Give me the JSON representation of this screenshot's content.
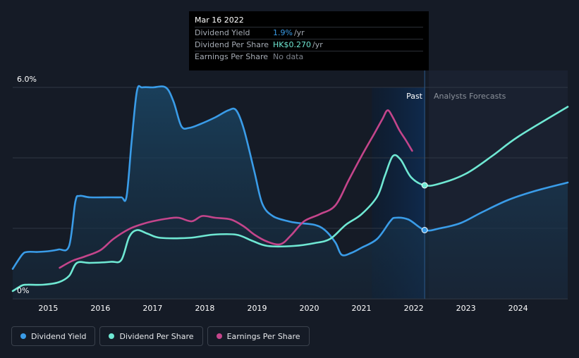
{
  "tooltip": {
    "date": "Mar 16 2022",
    "rows": [
      {
        "label": "Dividend Yield",
        "value": "1.9%",
        "unit": "/yr",
        "color": "#3a9ce8"
      },
      {
        "label": "Dividend Per Share",
        "value": "HK$0.270",
        "unit": "/yr",
        "color": "#6fe8d3"
      },
      {
        "label": "Earnings Per Share",
        "value": "No data",
        "unit": "",
        "color": "#7d838c"
      }
    ]
  },
  "legend": [
    {
      "label": "Dividend Yield",
      "color": "#3a9ce8"
    },
    {
      "label": "Dividend Per Share",
      "color": "#6fe8d3"
    },
    {
      "label": "Earnings Per Share",
      "color": "#c4458b"
    }
  ],
  "chart_data": {
    "type": "line",
    "ylim": [
      0,
      6
    ],
    "y_ticks": [
      "6.0%",
      "0%"
    ],
    "x_ticks": [
      "2015",
      "2016",
      "2017",
      "2018",
      "2019",
      "2020",
      "2021",
      "2022",
      "2023",
      "2024"
    ],
    "xlim": [
      2014.32,
      2024.95
    ],
    "past_label": "Past",
    "forecast_label": "Analysts Forecasts",
    "forecast_start": 2022.21,
    "shade_start": 2021.2,
    "grid": true,
    "legend_position": "bottom-left",
    "series": [
      {
        "name": "Dividend Yield",
        "color": "#3a9ce8",
        "area": true,
        "points": [
          [
            2014.32,
            0.85
          ],
          [
            2014.5,
            1.25
          ],
          [
            2014.6,
            1.33
          ],
          [
            2014.8,
            1.33
          ],
          [
            2015.0,
            1.35
          ],
          [
            2015.2,
            1.4
          ],
          [
            2015.4,
            1.5
          ],
          [
            2015.52,
            2.75
          ],
          [
            2015.6,
            2.92
          ],
          [
            2015.8,
            2.88
          ],
          [
            2016.2,
            2.88
          ],
          [
            2016.4,
            2.88
          ],
          [
            2016.5,
            2.9
          ],
          [
            2016.6,
            4.5
          ],
          [
            2016.7,
            5.9
          ],
          [
            2016.8,
            6.0
          ],
          [
            2017.0,
            6.0
          ],
          [
            2017.25,
            6.0
          ],
          [
            2017.4,
            5.6
          ],
          [
            2017.55,
            4.9
          ],
          [
            2017.7,
            4.85
          ],
          [
            2017.9,
            4.95
          ],
          [
            2018.2,
            5.15
          ],
          [
            2018.45,
            5.35
          ],
          [
            2018.6,
            5.35
          ],
          [
            2018.75,
            4.8
          ],
          [
            2018.95,
            3.6
          ],
          [
            2019.1,
            2.7
          ],
          [
            2019.3,
            2.35
          ],
          [
            2019.6,
            2.2
          ],
          [
            2019.8,
            2.15
          ],
          [
            2020.1,
            2.1
          ],
          [
            2020.3,
            1.95
          ],
          [
            2020.5,
            1.6
          ],
          [
            2020.62,
            1.25
          ],
          [
            2020.8,
            1.3
          ],
          [
            2021.0,
            1.45
          ],
          [
            2021.3,
            1.7
          ],
          [
            2021.55,
            2.2
          ],
          [
            2021.65,
            2.3
          ],
          [
            2021.9,
            2.25
          ],
          [
            2022.21,
            1.95
          ],
          [
            2022.5,
            2.0
          ],
          [
            2022.9,
            2.15
          ],
          [
            2023.3,
            2.45
          ],
          [
            2023.8,
            2.8
          ],
          [
            2024.3,
            3.05
          ],
          [
            2024.95,
            3.3
          ]
        ]
      },
      {
        "name": "Dividend Per Share",
        "color": "#6fe8d3",
        "area": false,
        "points": [
          [
            2014.32,
            0.22
          ],
          [
            2014.5,
            0.38
          ],
          [
            2014.6,
            0.4
          ],
          [
            2014.9,
            0.4
          ],
          [
            2015.2,
            0.47
          ],
          [
            2015.4,
            0.65
          ],
          [
            2015.55,
            1.02
          ],
          [
            2015.8,
            1.02
          ],
          [
            2016.2,
            1.05
          ],
          [
            2016.4,
            1.1
          ],
          [
            2016.55,
            1.75
          ],
          [
            2016.7,
            1.95
          ],
          [
            2016.9,
            1.85
          ],
          [
            2017.15,
            1.73
          ],
          [
            2017.7,
            1.73
          ],
          [
            2018.15,
            1.82
          ],
          [
            2018.6,
            1.82
          ],
          [
            2018.9,
            1.65
          ],
          [
            2019.2,
            1.5
          ],
          [
            2019.7,
            1.5
          ],
          [
            2020.1,
            1.58
          ],
          [
            2020.4,
            1.7
          ],
          [
            2020.7,
            2.1
          ],
          [
            2021.0,
            2.4
          ],
          [
            2021.3,
            2.9
          ],
          [
            2021.45,
            3.5
          ],
          [
            2021.6,
            4.05
          ],
          [
            2021.75,
            3.95
          ],
          [
            2021.95,
            3.45
          ],
          [
            2022.21,
            3.22
          ],
          [
            2022.5,
            3.27
          ],
          [
            2023.0,
            3.55
          ],
          [
            2023.5,
            4.05
          ],
          [
            2024.0,
            4.6
          ],
          [
            2024.95,
            5.45
          ]
        ]
      },
      {
        "name": "Earnings Per Share",
        "color": "#c4458b",
        "area": false,
        "points": [
          [
            2015.22,
            0.88
          ],
          [
            2015.45,
            1.07
          ],
          [
            2015.7,
            1.2
          ],
          [
            2016.0,
            1.38
          ],
          [
            2016.25,
            1.7
          ],
          [
            2016.55,
            1.98
          ],
          [
            2016.8,
            2.12
          ],
          [
            2017.0,
            2.2
          ],
          [
            2017.3,
            2.28
          ],
          [
            2017.5,
            2.3
          ],
          [
            2017.75,
            2.2
          ],
          [
            2017.95,
            2.35
          ],
          [
            2018.2,
            2.3
          ],
          [
            2018.5,
            2.25
          ],
          [
            2018.75,
            2.05
          ],
          [
            2018.95,
            1.82
          ],
          [
            2019.2,
            1.62
          ],
          [
            2019.45,
            1.55
          ],
          [
            2019.65,
            1.8
          ],
          [
            2019.9,
            2.2
          ],
          [
            2020.2,
            2.4
          ],
          [
            2020.5,
            2.65
          ],
          [
            2020.75,
            3.35
          ],
          [
            2021.0,
            4.05
          ],
          [
            2021.25,
            4.7
          ],
          [
            2021.4,
            5.1
          ],
          [
            2021.5,
            5.35
          ],
          [
            2021.6,
            5.15
          ],
          [
            2021.72,
            4.8
          ],
          [
            2021.85,
            4.5
          ],
          [
            2021.97,
            4.2
          ]
        ]
      }
    ],
    "markers": [
      {
        "series": "Dividend Yield",
        "x": 2022.21,
        "y": 1.95
      },
      {
        "series": "Dividend Per Share",
        "x": 2022.21,
        "y": 3.22
      }
    ]
  }
}
